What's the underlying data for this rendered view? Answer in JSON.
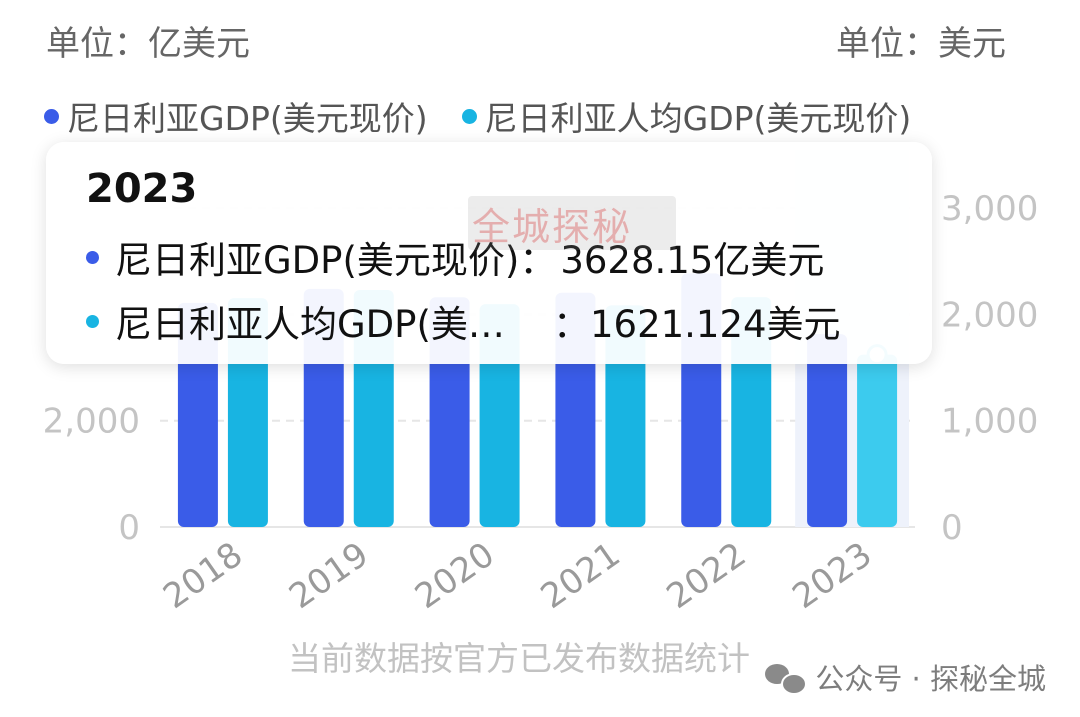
{
  "units": {
    "left": "单位：亿美元",
    "right": "单位：美元"
  },
  "legend": [
    {
      "label": "尼日利亚GDP(美元现价)",
      "color": "#3a5ce8"
    },
    {
      "label": "尼日利亚人均GDP(美元现价)",
      "color": "#18b4e2"
    }
  ],
  "tooltip": {
    "title": "2023",
    "rows": [
      {
        "name": "尼日利亚GDP(美元现价)：",
        "value": "3628.15亿美元"
      },
      {
        "name": "尼日利亚人均GDP(美…",
        "value": "：1621.124美元"
      }
    ]
  },
  "watermark": "全城探秘",
  "footnote": "当前数据按官方已发布数据统计",
  "source": "公众号 · 探秘全城",
  "chart_data": {
    "type": "bar",
    "categories": [
      "2018",
      "2019",
      "2020",
      "2021",
      "2022",
      "2023"
    ],
    "series": [
      {
        "name": "尼日利亚GDP(美元现价)",
        "axis": "left",
        "color": "#3a5ce8",
        "values": [
          4218,
          4481,
          4322,
          4408,
          4773,
          3628.15
        ]
      },
      {
        "name": "尼日利亚人均GDP(美元现价)",
        "axis": "right",
        "color": "#18b4e2",
        "values": [
          2153,
          2230,
          2097,
          2085,
          2163,
          1621.124
        ]
      }
    ],
    "y_left": {
      "ticks": [
        "0",
        "2,000"
      ],
      "tick_values": [
        0,
        2000
      ],
      "range": [
        0,
        6000
      ]
    },
    "y_right": {
      "ticks": [
        "0",
        "1,000",
        "2,000",
        "3,000"
      ],
      "tick_values": [
        0,
        1000,
        2000,
        3000
      ],
      "range": [
        0,
        3000
      ]
    },
    "grid": true,
    "legend_position": "top-left",
    "highlighted_category": "2023"
  }
}
